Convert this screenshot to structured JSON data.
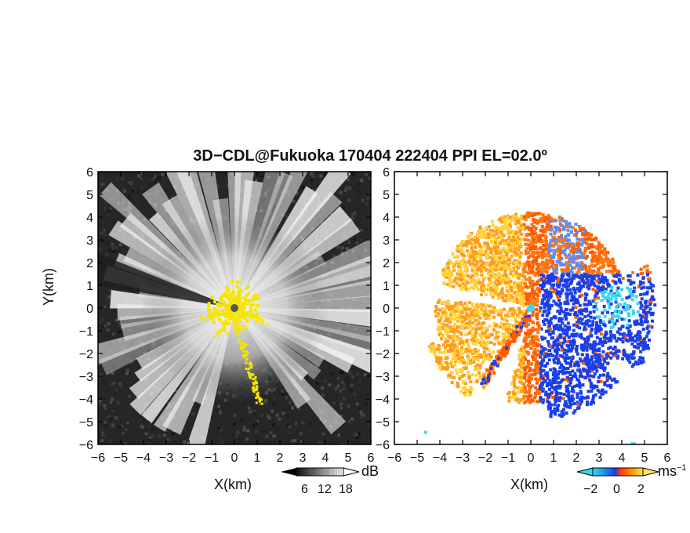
{
  "title": "3D−CDL@Fukuoka 170404 222404 PPI EL=02.0º",
  "left_panel": {
    "xlabel": "X(km)",
    "ylabel": "Y(km)",
    "colorbar": {
      "unit": "dB",
      "tick_labels": [
        "6",
        "12",
        "18"
      ]
    }
  },
  "right_panel": {
    "xlabel": "X(km)",
    "colorbar": {
      "unit": "ms",
      "unit_superscript": "−1",
      "tick_labels": [
        "−2",
        "0",
        "2"
      ]
    }
  },
  "colors": {
    "background_dark": "#222222",
    "signal_white": "#ffffff",
    "ground_clutter": "#f5e600",
    "radar_site": "#555555",
    "velocity_negative_strong": "#1a3fe8",
    "velocity_negative_weak": "#3cd6f0",
    "velocity_positive_weak": "#ffd23a",
    "velocity_positive_strong": "#ff5a00"
  },
  "chart_data": [
    {
      "type": "heatmap",
      "panel": "left",
      "quantity": "SNR",
      "xlabel": "X(km)",
      "ylabel": "Y(km)",
      "xlim": [
        -6,
        6
      ],
      "ylim": [
        -6,
        6
      ],
      "x_ticks": [
        -6,
        -5,
        -4,
        -3,
        -2,
        -1,
        0,
        1,
        2,
        3,
        4,
        5,
        6
      ],
      "y_ticks": [
        -6,
        -5,
        -4,
        -3,
        -2,
        -1,
        0,
        1,
        2,
        3,
        4,
        5,
        6
      ],
      "colorbar_ticks": [
        6,
        12,
        18
      ],
      "colorbar_unit": "dB",
      "radar_site": [
        0,
        0
      ]
    },
    {
      "type": "heatmap",
      "panel": "right",
      "quantity": "Doppler velocity",
      "xlabel": "X(km)",
      "xlim": [
        -6,
        6
      ],
      "ylim": [
        -6,
        6
      ],
      "x_ticks": [
        -6,
        -5,
        -4,
        -3,
        -2,
        -1,
        0,
        1,
        2,
        3,
        4,
        5,
        6
      ],
      "y_ticks": [
        -6,
        -5,
        -4,
        -3,
        -2,
        -1,
        0,
        1,
        2,
        3,
        4,
        5,
        6
      ],
      "colorbar_ticks": [
        -2,
        0,
        2
      ],
      "colorbar_unit": "ms−1",
      "radar_site": [
        0,
        0
      ]
    }
  ]
}
